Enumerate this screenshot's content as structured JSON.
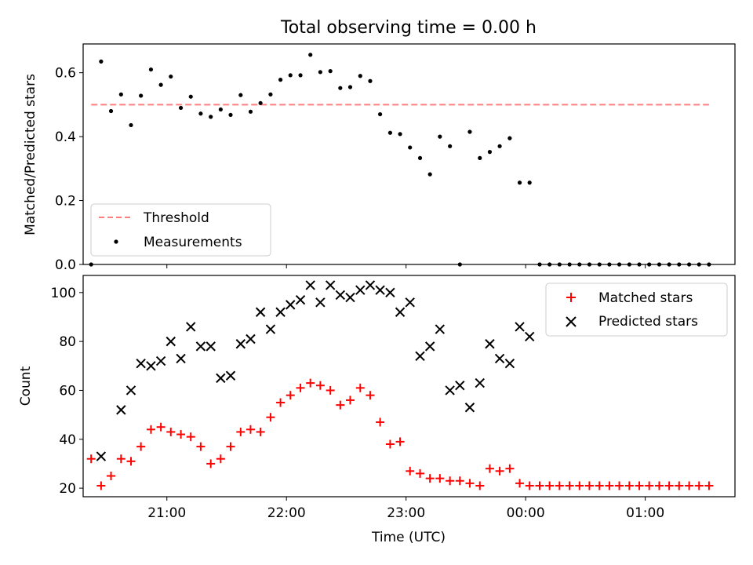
{
  "title": "Total observing time = 0.00 h",
  "chart_data": [
    {
      "type": "scatter",
      "ylabel": "Matched/Predicted stars",
      "ylim": [
        0,
        0.69
      ],
      "yticks": [
        0.0,
        0.2,
        0.4,
        0.6
      ],
      "ytick_labels": [
        "0.0",
        "0.2",
        "0.4",
        "0.6"
      ],
      "xlim_hours": [
        20.3,
        25.75
      ],
      "threshold": 0.5,
      "legend_position": "lower-left",
      "series": [
        {
          "name": "Threshold",
          "kind": "dashed-line",
          "color": "#ff7f7f"
        },
        {
          "name": "Measurements",
          "kind": "dot",
          "color": "#000000"
        }
      ],
      "x_hours": [
        20.367,
        20.45,
        20.533,
        20.617,
        20.7,
        20.783,
        20.867,
        20.95,
        21.033,
        21.117,
        21.2,
        21.283,
        21.367,
        21.45,
        21.533,
        21.617,
        21.7,
        21.783,
        21.867,
        21.95,
        22.033,
        22.117,
        22.2,
        22.283,
        22.367,
        22.45,
        22.533,
        22.617,
        22.7,
        22.783,
        22.867,
        22.95,
        23.033,
        23.117,
        23.2,
        23.283,
        23.367,
        23.45,
        23.533,
        23.617,
        23.7,
        23.783,
        23.867,
        23.95,
        24.033,
        24.117,
        24.2,
        24.283,
        24.367,
        24.45,
        24.533,
        24.617,
        24.7,
        24.783,
        24.867,
        24.95,
        25.033,
        25.117,
        25.2,
        25.283,
        25.367,
        25.45,
        25.533
      ],
      "ratio": [
        0.0,
        0.635,
        0.48,
        0.532,
        0.436,
        0.528,
        0.61,
        0.562,
        0.588,
        0.49,
        0.525,
        0.472,
        0.462,
        0.485,
        0.468,
        0.53,
        0.478,
        0.505,
        0.532,
        0.578,
        0.592,
        0.592,
        0.656,
        0.602,
        0.605,
        0.552,
        0.555,
        0.59,
        0.574,
        0.47,
        0.412,
        0.408,
        0.366,
        0.333,
        0.282,
        0.4,
        0.37,
        0.0,
        0.415,
        0.333,
        0.352,
        0.37,
        0.395,
        0.256,
        0.256,
        0.0,
        0.0,
        0.0,
        0.0,
        0.0,
        0.0,
        0.0,
        0.0,
        0.0,
        0.0,
        0.0,
        0.0,
        0.0,
        0.0,
        0.0,
        0.0,
        0.0,
        0.0
      ]
    },
    {
      "type": "scatter",
      "xlabel": "Time (UTC)",
      "ylabel": "Count",
      "ylim": [
        16.5,
        107
      ],
      "yticks": [
        20,
        40,
        60,
        80,
        100
      ],
      "ytick_labels": [
        "20",
        "40",
        "60",
        "80",
        "100"
      ],
      "xlim_hours": [
        20.3,
        25.75
      ],
      "xticks_hours": [
        21,
        22,
        23,
        24,
        25
      ],
      "xtick_labels": [
        "21:00",
        "22:00",
        "23:00",
        "00:00",
        "01:00"
      ],
      "legend_position": "upper-right",
      "series": [
        {
          "name": "Matched stars",
          "marker": "+",
          "color": "#ff0000",
          "x_hours": [
            20.367,
            20.45,
            20.533,
            20.617,
            20.7,
            20.783,
            20.867,
            20.95,
            21.033,
            21.117,
            21.2,
            21.283,
            21.367,
            21.45,
            21.533,
            21.617,
            21.7,
            21.783,
            21.867,
            21.95,
            22.033,
            22.117,
            22.2,
            22.283,
            22.367,
            22.45,
            22.533,
            22.617,
            22.7,
            22.783,
            22.867,
            22.95,
            23.033,
            23.117,
            23.2,
            23.283,
            23.367,
            23.45,
            23.533,
            23.617,
            23.7,
            23.783,
            23.867,
            23.95,
            24.033,
            24.117,
            24.2,
            24.283,
            24.367,
            24.45,
            24.533,
            24.617,
            24.7,
            24.783,
            24.867,
            24.95,
            25.033,
            25.117,
            25.2,
            25.283,
            25.367,
            25.45,
            25.533
          ],
          "values": [
            32,
            21,
            25,
            32,
            31,
            37,
            44,
            45,
            43,
            42,
            41,
            37,
            30,
            32,
            37,
            43,
            44,
            43,
            49,
            55,
            58,
            61,
            63,
            62,
            60,
            54,
            56,
            61,
            58,
            47,
            38,
            39,
            27,
            26,
            24,
            24,
            23,
            23,
            22,
            21,
            28,
            27,
            28,
            22,
            21,
            21,
            21,
            21,
            21,
            21,
            21,
            21,
            21,
            21,
            21,
            21,
            21,
            21,
            21,
            21,
            21,
            21,
            21
          ]
        },
        {
          "name": "Predicted stars",
          "marker": "x",
          "color": "#000000",
          "x_hours": [
            20.45,
            20.617,
            20.7,
            20.783,
            20.867,
            20.95,
            21.033,
            21.117,
            21.2,
            21.283,
            21.367,
            21.45,
            21.533,
            21.617,
            21.7,
            21.783,
            21.867,
            21.95,
            22.033,
            22.117,
            22.2,
            22.283,
            22.367,
            22.45,
            22.533,
            22.617,
            22.7,
            22.783,
            22.867,
            22.95,
            23.033,
            23.117,
            23.2,
            23.283,
            23.367,
            23.45,
            23.533,
            23.617,
            23.7,
            23.783,
            23.867,
            23.95,
            24.033
          ],
          "values": [
            33,
            52,
            60,
            71,
            70,
            72,
            80,
            73,
            86,
            78,
            78,
            65,
            66,
            79,
            81,
            92,
            85,
            92,
            95,
            97,
            103,
            96,
            103,
            99,
            98,
            101,
            103,
            101,
            100,
            92,
            96,
            74,
            78,
            85,
            60,
            62,
            53,
            63,
            79,
            73,
            71,
            86,
            82
          ]
        }
      ]
    }
  ]
}
